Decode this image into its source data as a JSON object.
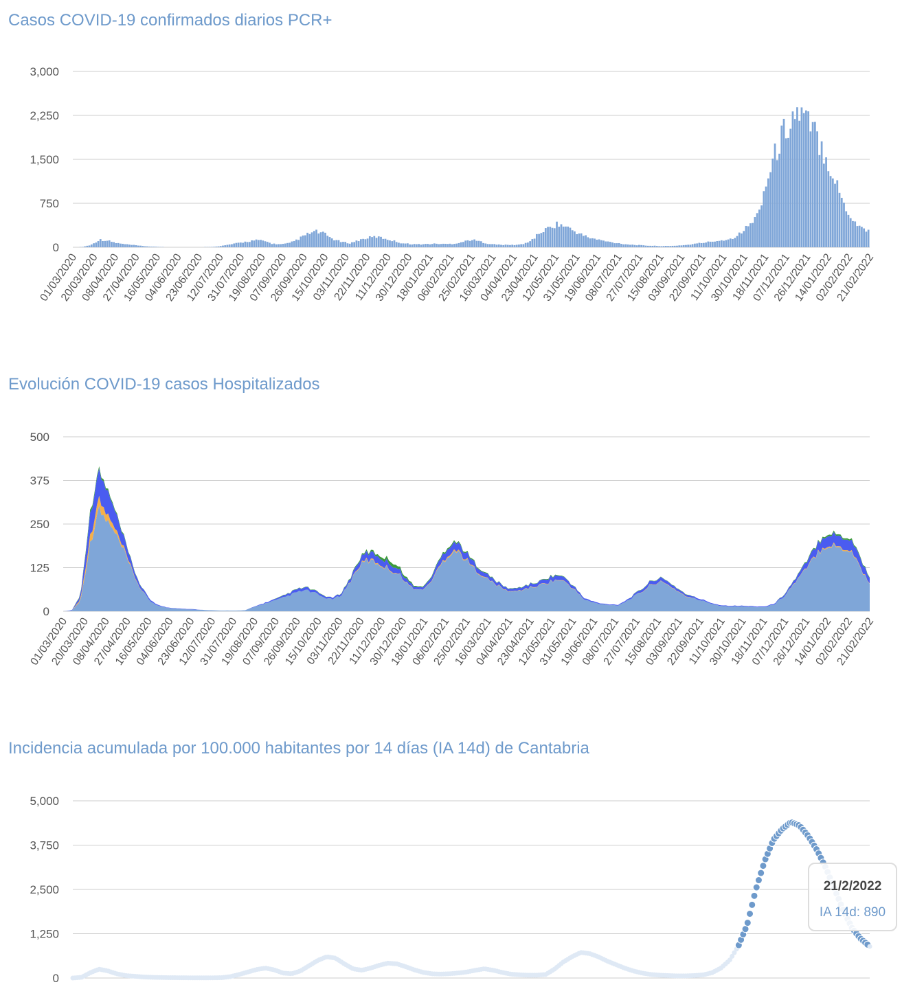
{
  "colors": {
    "title": "#6e9acb",
    "bars": "#7fa6d8",
    "hosp_blue": "#4a5cf0",
    "hosp_green": "#3c9a3c",
    "hosp_orange": "#f5b04a",
    "ia_dot": "#6e9acb"
  },
  "chart_data": [
    {
      "type": "bar",
      "title": "Casos COVID-19 confirmados diarios PCR+",
      "xlabel": "",
      "ylabel": "",
      "ylim": [
        0,
        3000
      ],
      "yticks": [
        "3,000",
        "2,250",
        "1,500",
        "750",
        "0"
      ],
      "x_tick_labels": [
        "01/03/2020",
        "20/03/2020",
        "08/04/2020",
        "27/04/2020",
        "16/05/2020",
        "04/06/2020",
        "23/06/2020",
        "12/07/2020",
        "31/07/2020",
        "19/08/2020",
        "07/09/2020",
        "26/09/2020",
        "15/10/2020",
        "03/11/2020",
        "22/11/2020",
        "11/12/2020",
        "30/12/2020",
        "18/01/2021",
        "06/02/2021",
        "25/02/2021",
        "16/03/2021",
        "04/04/2021",
        "23/04/2021",
        "12/05/2021",
        "31/05/2021",
        "19/06/2021",
        "08/07/2021",
        "27/07/2021",
        "15/08/2021",
        "03/09/2021",
        "22/09/2021",
        "11/10/2021",
        "30/10/2021",
        "18/11/2021",
        "07/12/2021",
        "26/12/2021",
        "14/01/2022",
        "02/02/2022",
        "21/02/2022"
      ],
      "grid": true,
      "series": [
        {
          "values": [
            0,
            5,
            40,
            130,
            110,
            70,
            50,
            35,
            20,
            10,
            5,
            3,
            2,
            2,
            2,
            3,
            5,
            20,
            45,
            70,
            95,
            120,
            110,
            60,
            50,
            70,
            140,
            220,
            270,
            230,
            140,
            90,
            70,
            120,
            160,
            180,
            150,
            110,
            70,
            55,
            50,
            55,
            60,
            55,
            60,
            90,
            130,
            100,
            60,
            45,
            40,
            40,
            50,
            120,
            250,
            330,
            400,
            350,
            270,
            200,
            150,
            120,
            90,
            70,
            50,
            40,
            30,
            25,
            20,
            20,
            30,
            40,
            60,
            80,
            100,
            120,
            140,
            220,
            350,
            500,
            1000,
            1500,
            1900,
            2200,
            2300,
            2100,
            1900,
            1600,
            1200,
            800,
            500,
            350,
            280
          ]
        }
      ]
    },
    {
      "type": "area",
      "title": "Evolución COVID-19 casos  Hospitalizados",
      "xlabel": "",
      "ylabel": "",
      "ylim": [
        0,
        500
      ],
      "yticks": [
        "500",
        "375",
        "250",
        "125",
        "0"
      ],
      "x_tick_labels": [
        "01/03/2020",
        "20/03/2020",
        "08/04/2020",
        "27/04/2020",
        "16/05/2020",
        "04/06/2020",
        "23/06/2020",
        "12/07/2020",
        "31/07/2020",
        "19/08/2020",
        "07/09/2020",
        "26/09/2020",
        "15/10/2020",
        "03/11/2020",
        "22/11/2020",
        "11/12/2020",
        "30/12/2020",
        "18/01/2021",
        "06/02/2021",
        "25/02/2021",
        "16/03/2021",
        "04/04/2021",
        "23/04/2021",
        "12/05/2021",
        "31/05/2021",
        "19/06/2021",
        "08/07/2021",
        "27/07/2021",
        "15/08/2021",
        "03/09/2021",
        "22/09/2021",
        "11/10/2021",
        "30/10/2021",
        "18/11/2021",
        "07/12/2021",
        "26/12/2021",
        "14/01/2022",
        "02/02/2022",
        "21/02/2022"
      ],
      "grid": true,
      "series": [
        {
          "color": "#7fa6d8",
          "values": [
            0,
            2,
            30,
            180,
            290,
            260,
            220,
            170,
            110,
            60,
            30,
            15,
            10,
            8,
            6,
            5,
            4,
            3,
            2,
            2,
            2,
            3,
            12,
            20,
            28,
            35,
            45,
            55,
            60,
            52,
            40,
            34,
            45,
            80,
            125,
            145,
            140,
            128,
            115,
            100,
            70,
            60,
            70,
            110,
            150,
            175,
            160,
            130,
            110,
            90,
            75,
            60,
            55,
            62,
            68,
            74,
            84,
            90,
            82,
            60,
            35,
            26,
            20,
            18,
            17,
            30,
            45,
            60,
            80,
            82,
            72,
            55,
            40,
            35,
            28,
            20,
            15,
            14,
            14,
            13,
            12,
            12,
            20,
            40,
            70,
            100,
            130,
            170,
            190,
            185,
            180,
            170,
            120,
            80
          ]
        },
        {
          "color": "#f5b04a",
          "values": [
            0,
            0,
            5,
            20,
            30,
            20,
            12,
            6,
            3,
            1,
            0,
            0,
            0,
            0,
            0,
            0,
            0,
            0,
            0,
            0,
            0,
            0,
            0,
            0,
            0,
            0,
            0,
            0,
            0,
            0,
            0,
            0,
            0,
            1,
            2,
            3,
            3,
            2,
            2,
            1,
            1,
            0,
            1,
            2,
            3,
            4,
            3,
            2,
            2,
            1,
            1,
            1,
            1,
            1,
            1,
            1,
            1,
            1,
            1,
            1,
            0,
            0,
            0,
            0,
            0,
            0,
            0,
            1,
            1,
            1,
            1,
            1,
            1,
            0,
            0,
            0,
            0,
            0,
            0,
            0,
            0,
            0,
            0,
            0,
            1,
            1,
            2,
            2,
            3,
            3,
            3,
            3,
            2,
            1
          ]
        },
        {
          "color": "#4a5cf0",
          "values": [
            0,
            1,
            10,
            60,
            80,
            70,
            50,
            30,
            15,
            8,
            4,
            2,
            1,
            1,
            1,
            1,
            0,
            0,
            0,
            0,
            0,
            0,
            1,
            2,
            3,
            4,
            6,
            8,
            8,
            6,
            5,
            4,
            5,
            8,
            15,
            20,
            20,
            18,
            16,
            12,
            8,
            6,
            8,
            14,
            20,
            22,
            20,
            16,
            13,
            11,
            9,
            7,
            7,
            8,
            9,
            10,
            12,
            12,
            10,
            7,
            4,
            3,
            2,
            2,
            2,
            3,
            5,
            8,
            10,
            10,
            8,
            6,
            5,
            4,
            3,
            2,
            2,
            2,
            2,
            2,
            2,
            2,
            2,
            4,
            7,
            12,
            18,
            25,
            30,
            30,
            30,
            30,
            25,
            15
          ]
        },
        {
          "color": "#3c9a3c",
          "values": [
            0,
            0,
            2,
            8,
            6,
            5,
            4,
            3,
            2,
            1,
            0,
            0,
            0,
            0,
            0,
            0,
            0,
            0,
            0,
            0,
            0,
            0,
            0,
            0,
            0,
            1,
            1,
            1,
            1,
            1,
            1,
            0,
            1,
            2,
            3,
            4,
            5,
            8,
            10,
            6,
            4,
            2,
            2,
            3,
            4,
            4,
            3,
            3,
            2,
            2,
            1,
            1,
            1,
            1,
            1,
            1,
            2,
            2,
            1,
            1,
            0,
            0,
            0,
            0,
            0,
            0,
            1,
            1,
            1,
            1,
            1,
            1,
            1,
            0,
            0,
            0,
            0,
            0,
            0,
            0,
            0,
            0,
            0,
            1,
            1,
            2,
            3,
            3,
            4,
            4,
            4,
            4,
            3,
            2
          ]
        }
      ]
    },
    {
      "type": "scatter",
      "title": "Incidencia acumulada por 100.000 habitantes por 14 días (IA 14d) de Cantabria",
      "xlabel": "",
      "ylabel": "",
      "ylim": [
        0,
        5000
      ],
      "yticks": [
        "5,000",
        "3,750",
        "2,500",
        "1,250",
        "0"
      ],
      "grid": true,
      "series": [
        {
          "name": "IA 14d",
          "values": [
            0,
            20,
            150,
            250,
            200,
            120,
            70,
            50,
            30,
            20,
            15,
            10,
            8,
            6,
            5,
            5,
            6,
            10,
            40,
            100,
            170,
            240,
            280,
            230,
            140,
            120,
            200,
            350,
            500,
            600,
            560,
            400,
            260,
            220,
            280,
            360,
            420,
            400,
            320,
            230,
            160,
            120,
            110,
            120,
            140,
            170,
            220,
            260,
            220,
            160,
            110,
            90,
            80,
            80,
            100,
            250,
            450,
            600,
            720,
            690,
            600,
            480,
            380,
            280,
            200,
            140,
            100,
            80,
            70,
            60,
            60,
            70,
            90,
            150,
            280,
            500,
            900,
            1500,
            2500,
            3300,
            3900,
            4200,
            4400,
            4300,
            4000,
            3600,
            3100,
            2500,
            1900,
            1400,
            1100,
            890
          ]
        }
      ],
      "tooltip": {
        "date": "21/2/2022",
        "label": "IA 14d",
        "value": "890",
        "text": "IA 14d: 890"
      }
    }
  ]
}
